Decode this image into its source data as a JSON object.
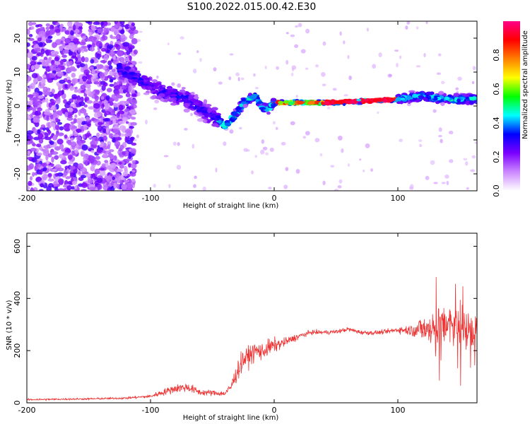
{
  "title": "S100.2022.015.00.42.E30",
  "chart_data": [
    {
      "type": "heatmap",
      "name": "spectrogram",
      "xlabel": "Height of straight line (km)",
      "ylabel": "Frequency (Hz)",
      "xlim": [
        -200,
        164
      ],
      "ylim": [
        -25,
        25
      ],
      "xticks": [
        -200,
        -100,
        0,
        100
      ],
      "yticks": [
        -20,
        -10,
        0,
        10,
        20
      ],
      "colorbar": {
        "label": "Normalized spectral amplitude",
        "range": [
          0.0,
          1.0
        ],
        "ticks": [
          "0.0",
          "0.2",
          "0.4",
          "0.6",
          "0.8"
        ],
        "colormap": [
          "#ffffff",
          "#cc88ff",
          "#7b00ff",
          "#0000ff",
          "#00ffff",
          "#00ff00",
          "#ffff00",
          "#ff7f00",
          "#ff0000",
          "#ff0088"
        ]
      },
      "ridge": {
        "x": [
          -200,
          -130,
          -110,
          -90,
          -70,
          -55,
          -45,
          -40,
          -35,
          -30,
          -25,
          -20,
          -15,
          -10,
          -5,
          0,
          10,
          50,
          100,
          120,
          140,
          164
        ],
        "y": [
          10,
          12,
          8,
          4,
          2,
          -2,
          -4,
          -6,
          -4,
          -2,
          1,
          2,
          3,
          0,
          -1,
          1,
          1,
          1,
          2,
          3,
          2,
          2
        ]
      },
      "grid": false
    },
    {
      "type": "line",
      "name": "snr",
      "xlabel": "Height of straight line (km)",
      "ylabel": "SNR (10 * v/v)",
      "xlim": [
        -200,
        164
      ],
      "ylim": [
        0,
        650
      ],
      "xticks": [
        -200,
        -100,
        0,
        100
      ],
      "yticks": [
        0,
        200,
        400,
        600
      ],
      "series": [
        {
          "color": "#ee3333",
          "envelope_x": [
            -200,
            -150,
            -120,
            -100,
            -90,
            -80,
            -70,
            -60,
            -50,
            -40,
            -35,
            -30,
            -25,
            -20,
            -15,
            -10,
            -5,
            0,
            5,
            10,
            20,
            30,
            40,
            50,
            60,
            70,
            80,
            90,
            100,
            110,
            120,
            130,
            140,
            150,
            160,
            164
          ],
          "envelope_y": [
            12,
            15,
            18,
            25,
            40,
            55,
            60,
            40,
            38,
            35,
            60,
            120,
            165,
            180,
            200,
            195,
            210,
            220,
            225,
            235,
            255,
            270,
            270,
            272,
            282,
            270,
            268,
            272,
            280,
            278,
            285,
            280,
            300,
            285,
            270,
            280
          ],
          "noise_y": [
            4,
            4,
            5,
            8,
            15,
            20,
            22,
            15,
            14,
            12,
            25,
            45,
            50,
            45,
            45,
            40,
            40,
            35,
            25,
            20,
            15,
            10,
            10,
            10,
            10,
            10,
            10,
            10,
            15,
            25,
            60,
            90,
            110,
            100,
            80,
            70
          ]
        }
      ],
      "grid": false
    }
  ]
}
